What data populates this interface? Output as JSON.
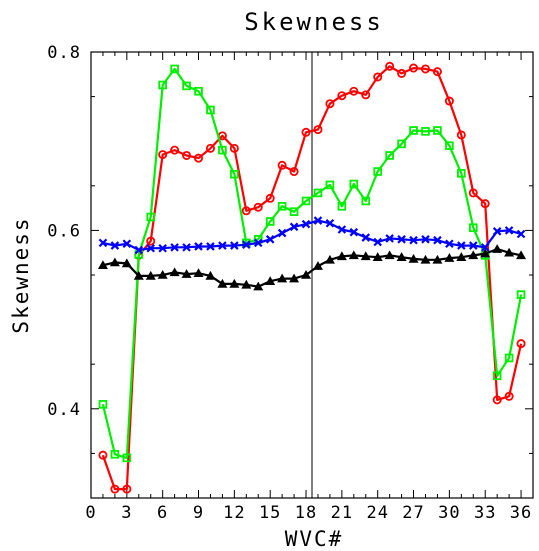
{
  "chart_data": {
    "type": "line",
    "title": "Skewness",
    "xlabel": "WVC#",
    "ylabel": "Skewness",
    "xlim": [
      0,
      37
    ],
    "ylim": [
      0.3,
      0.8
    ],
    "x_ticks": [
      0,
      3,
      6,
      9,
      12,
      15,
      18,
      21,
      24,
      27,
      30,
      33,
      36
    ],
    "x_tick_labels": [
      "0",
      "3",
      "6",
      "9",
      "12",
      "15",
      "18",
      "21",
      "24",
      "27",
      "30",
      "33",
      "36"
    ],
    "y_ticks": [
      0.4,
      0.6,
      0.8
    ],
    "y_tick_labels": [
      "0.4",
      "0.6",
      "0.8"
    ],
    "reference_line_x": 18.5,
    "grid": false,
    "x": [
      1,
      2,
      3,
      4,
      5,
      6,
      7,
      8,
      9,
      10,
      11,
      12,
      13,
      14,
      15,
      16,
      17,
      18,
      19,
      20,
      21,
      22,
      23,
      24,
      25,
      26,
      27,
      28,
      29,
      30,
      31,
      32,
      33,
      34,
      35,
      36
    ],
    "series": [
      {
        "color": "#ff0000",
        "marker": "circle",
        "values": [
          0.348,
          0.31,
          0.31,
          0.572,
          0.588,
          0.685,
          0.69,
          0.684,
          0.681,
          0.692,
          0.706,
          0.692,
          0.622,
          0.626,
          0.636,
          0.673,
          0.666,
          0.71,
          0.713,
          0.742,
          0.751,
          0.756,
          0.752,
          0.772,
          0.784,
          0.776,
          0.782,
          0.781,
          0.778,
          0.745,
          0.707,
          0.642,
          0.63,
          0.41,
          0.414,
          0.473
        ]
      },
      {
        "color": "#00ee00",
        "marker": "square",
        "values": [
          0.405,
          0.349,
          0.345,
          0.573,
          0.615,
          0.763,
          0.781,
          0.762,
          0.756,
          0.735,
          0.69,
          0.663,
          0.586,
          0.59,
          0.61,
          0.627,
          0.621,
          0.633,
          0.642,
          0.651,
          0.627,
          0.652,
          0.633,
          0.666,
          0.684,
          0.697,
          0.712,
          0.711,
          0.712,
          0.695,
          0.664,
          0.603,
          0.572,
          0.437,
          0.457,
          0.528
        ]
      },
      {
        "color": "#0000ff",
        "marker": "x",
        "values": [
          0.586,
          0.583,
          0.585,
          0.578,
          0.58,
          0.58,
          0.581,
          0.581,
          0.582,
          0.582,
          0.583,
          0.583,
          0.584,
          0.586,
          0.59,
          0.597,
          0.604,
          0.607,
          0.611,
          0.608,
          0.601,
          0.598,
          0.592,
          0.587,
          0.591,
          0.59,
          0.589,
          0.59,
          0.589,
          0.585,
          0.583,
          0.583,
          0.581,
          0.599,
          0.6,
          0.596
        ]
      },
      {
        "color": "#000000",
        "marker": "triangle",
        "values": [
          0.561,
          0.564,
          0.563,
          0.549,
          0.549,
          0.55,
          0.553,
          0.551,
          0.552,
          0.549,
          0.54,
          0.54,
          0.539,
          0.537,
          0.543,
          0.546,
          0.546,
          0.55,
          0.56,
          0.567,
          0.571,
          0.572,
          0.571,
          0.57,
          0.572,
          0.57,
          0.568,
          0.567,
          0.567,
          0.569,
          0.57,
          0.572,
          0.574,
          0.579,
          0.575,
          0.572
        ]
      }
    ]
  }
}
